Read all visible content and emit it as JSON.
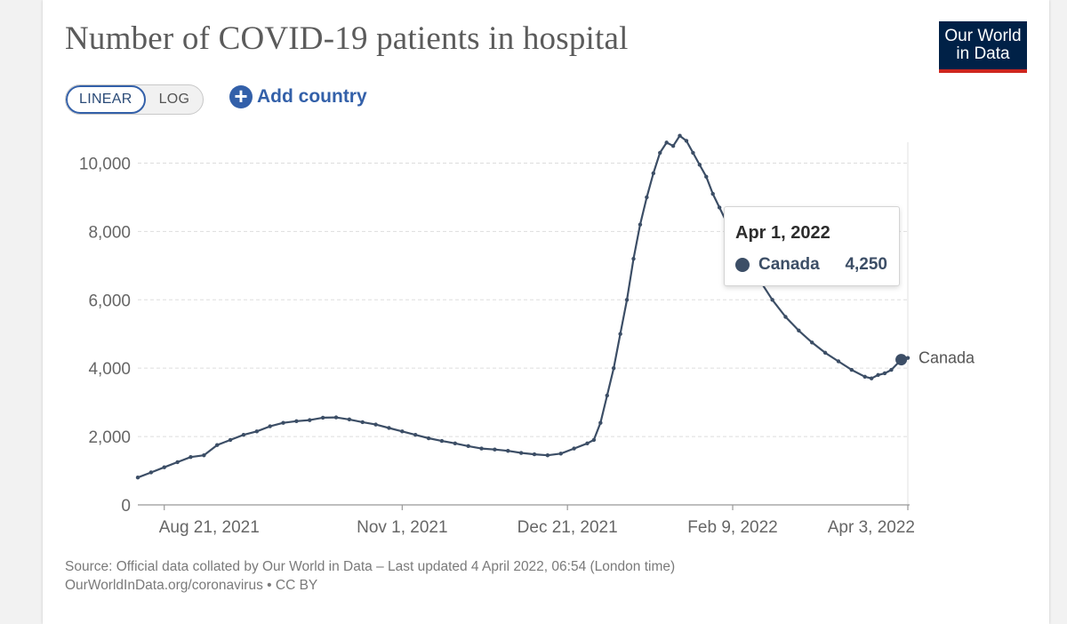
{
  "header": {
    "title": "Number of COVID-19 patients in hospital",
    "logo_line1": "Our World",
    "logo_line2": "in Data"
  },
  "controls": {
    "linear_label": "LINEAR",
    "log_label": "LOG",
    "add_country_label": "Add country",
    "add_icon": "plus-circle-icon"
  },
  "tooltip": {
    "date": "Apr 1, 2022",
    "series": "Canada",
    "value": "4,250"
  },
  "footer": {
    "source": "Source: Official data collated by Our World in Data – Last updated 4 April 2022, 06:54 (London time)",
    "link": "OurWorldInData.org/coronavirus • CC BY"
  },
  "colors": {
    "series": "#3c4e66",
    "grid": "#dddddd",
    "axis": "#999999",
    "accent": "#3360a9"
  },
  "chart_data": {
    "type": "line",
    "title": "Number of COVID-19 patients in hospital",
    "xlabel": "",
    "ylabel": "",
    "ylim": [
      0,
      11000
    ],
    "yticks": [
      0,
      2000,
      4000,
      6000,
      8000,
      10000
    ],
    "ytick_labels": [
      "0",
      "2,000",
      "4,000",
      "6,000",
      "8,000",
      "10,000"
    ],
    "x_range": [
      "2021-08-13",
      "2022-04-03"
    ],
    "xticks": [
      "2021-08-21",
      "2021-11-01",
      "2021-12-21",
      "2022-02-09",
      "2022-04-03"
    ],
    "xtick_labels": [
      "Aug 21, 2021",
      "Nov 1, 2021",
      "Dec 21, 2021",
      "Feb 9, 2022",
      "Apr 3, 2022"
    ],
    "grid": true,
    "series": [
      {
        "name": "Canada",
        "end_label": "Canada",
        "highlight": {
          "date": "2022-04-01",
          "value": 4250
        },
        "points": [
          [
            "2021-08-13",
            800
          ],
          [
            "2021-08-17",
            950
          ],
          [
            "2021-08-21",
            1100
          ],
          [
            "2021-08-25",
            1250
          ],
          [
            "2021-08-29",
            1400
          ],
          [
            "2021-09-02",
            1450
          ],
          [
            "2021-09-06",
            1750
          ],
          [
            "2021-09-10",
            1900
          ],
          [
            "2021-09-14",
            2050
          ],
          [
            "2021-09-18",
            2150
          ],
          [
            "2021-09-22",
            2300
          ],
          [
            "2021-09-26",
            2400
          ],
          [
            "2021-09-30",
            2450
          ],
          [
            "2021-10-04",
            2480
          ],
          [
            "2021-10-08",
            2550
          ],
          [
            "2021-10-12",
            2560
          ],
          [
            "2021-10-16",
            2500
          ],
          [
            "2021-10-20",
            2420
          ],
          [
            "2021-10-24",
            2350
          ],
          [
            "2021-10-28",
            2250
          ],
          [
            "2021-11-01",
            2150
          ],
          [
            "2021-11-05",
            2050
          ],
          [
            "2021-11-09",
            1950
          ],
          [
            "2021-11-13",
            1870
          ],
          [
            "2021-11-17",
            1800
          ],
          [
            "2021-11-21",
            1720
          ],
          [
            "2021-11-25",
            1650
          ],
          [
            "2021-11-29",
            1620
          ],
          [
            "2021-12-03",
            1580
          ],
          [
            "2021-12-07",
            1520
          ],
          [
            "2021-12-11",
            1480
          ],
          [
            "2021-12-15",
            1450
          ],
          [
            "2021-12-19",
            1500
          ],
          [
            "2021-12-23",
            1650
          ],
          [
            "2021-12-27",
            1800
          ],
          [
            "2021-12-29",
            1900
          ],
          [
            "2021-12-31",
            2400
          ],
          [
            "2022-01-02",
            3200
          ],
          [
            "2022-01-04",
            4000
          ],
          [
            "2022-01-06",
            5000
          ],
          [
            "2022-01-08",
            6000
          ],
          [
            "2022-01-10",
            7200
          ],
          [
            "2022-01-12",
            8200
          ],
          [
            "2022-01-14",
            9000
          ],
          [
            "2022-01-16",
            9700
          ],
          [
            "2022-01-18",
            10300
          ],
          [
            "2022-01-20",
            10600
          ],
          [
            "2022-01-22",
            10500
          ],
          [
            "2022-01-24",
            10800
          ],
          [
            "2022-01-26",
            10650
          ],
          [
            "2022-01-28",
            10300
          ],
          [
            "2022-01-30",
            9950
          ],
          [
            "2022-02-01",
            9600
          ],
          [
            "2022-02-03",
            9100
          ],
          [
            "2022-02-05",
            8700
          ],
          [
            "2022-02-07",
            8300
          ],
          [
            "2022-02-09",
            7900
          ],
          [
            "2022-02-13",
            7300
          ],
          [
            "2022-02-17",
            6600
          ],
          [
            "2022-02-21",
            6000
          ],
          [
            "2022-02-25",
            5500
          ],
          [
            "2022-03-01",
            5100
          ],
          [
            "2022-03-05",
            4750
          ],
          [
            "2022-03-09",
            4450
          ],
          [
            "2022-03-13",
            4200
          ],
          [
            "2022-03-17",
            3950
          ],
          [
            "2022-03-21",
            3750
          ],
          [
            "2022-03-23",
            3700
          ],
          [
            "2022-03-25",
            3800
          ],
          [
            "2022-03-27",
            3850
          ],
          [
            "2022-03-29",
            3950
          ],
          [
            "2022-04-01",
            4250
          ],
          [
            "2022-04-03",
            4300
          ]
        ]
      }
    ]
  }
}
